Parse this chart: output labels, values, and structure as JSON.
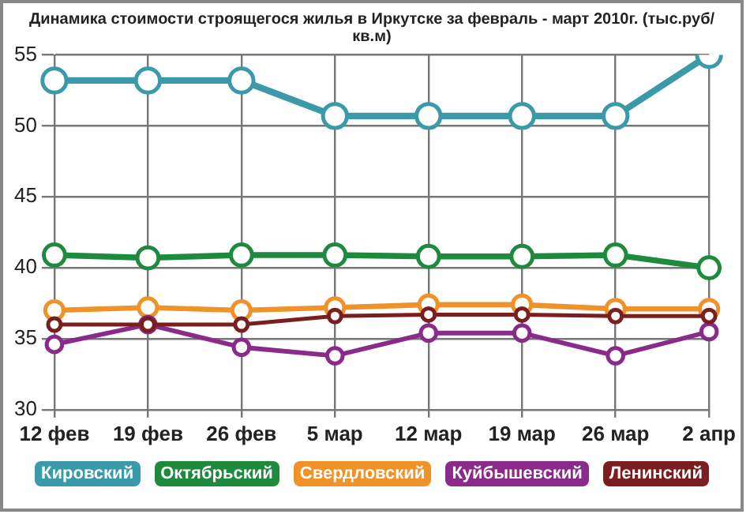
{
  "chart_data": {
    "type": "line",
    "title": "Динамика стоимости строящегося жилья в Иркутске за февраль - март 2010г. (тыс.руб/кв.м)",
    "categories": [
      "12 фев",
      "19 фев",
      "26 фев",
      "5 мар",
      "12 мар",
      "19 мар",
      "26 мар",
      "2 апр"
    ],
    "series": [
      {
        "name": "Кировский",
        "color": "#3a9aaa",
        "values": [
          53.2,
          53.2,
          53.2,
          50.7,
          50.7,
          50.7,
          50.7,
          55
        ]
      },
      {
        "name": "Октябрьский",
        "color": "#1e8a3e",
        "values": [
          40.9,
          40.7,
          40.9,
          40.9,
          40.8,
          40.8,
          40.9,
          40.0
        ]
      },
      {
        "name": "Свердловский",
        "color": "#f0922a",
        "values": [
          37.0,
          37.2,
          37.0,
          37.2,
          37.4,
          37.4,
          37.1,
          37.1
        ]
      },
      {
        "name": "Куйбышевский",
        "color": "#8a2a8a",
        "values": [
          34.6,
          36.0,
          34.4,
          33.8,
          35.4,
          35.4,
          33.8,
          35.5
        ]
      },
      {
        "name": "Ленинский",
        "color": "#7a1e1e",
        "values": [
          36.0,
          36.0,
          36.0,
          36.6,
          36.7,
          36.7,
          36.6,
          36.6
        ]
      }
    ],
    "ylim": [
      30,
      55
    ],
    "yticks": [
      30,
      35,
      40,
      45,
      50,
      55
    ],
    "grid": true,
    "legend": "bottom",
    "marker": "circle",
    "line_style": "solid"
  }
}
